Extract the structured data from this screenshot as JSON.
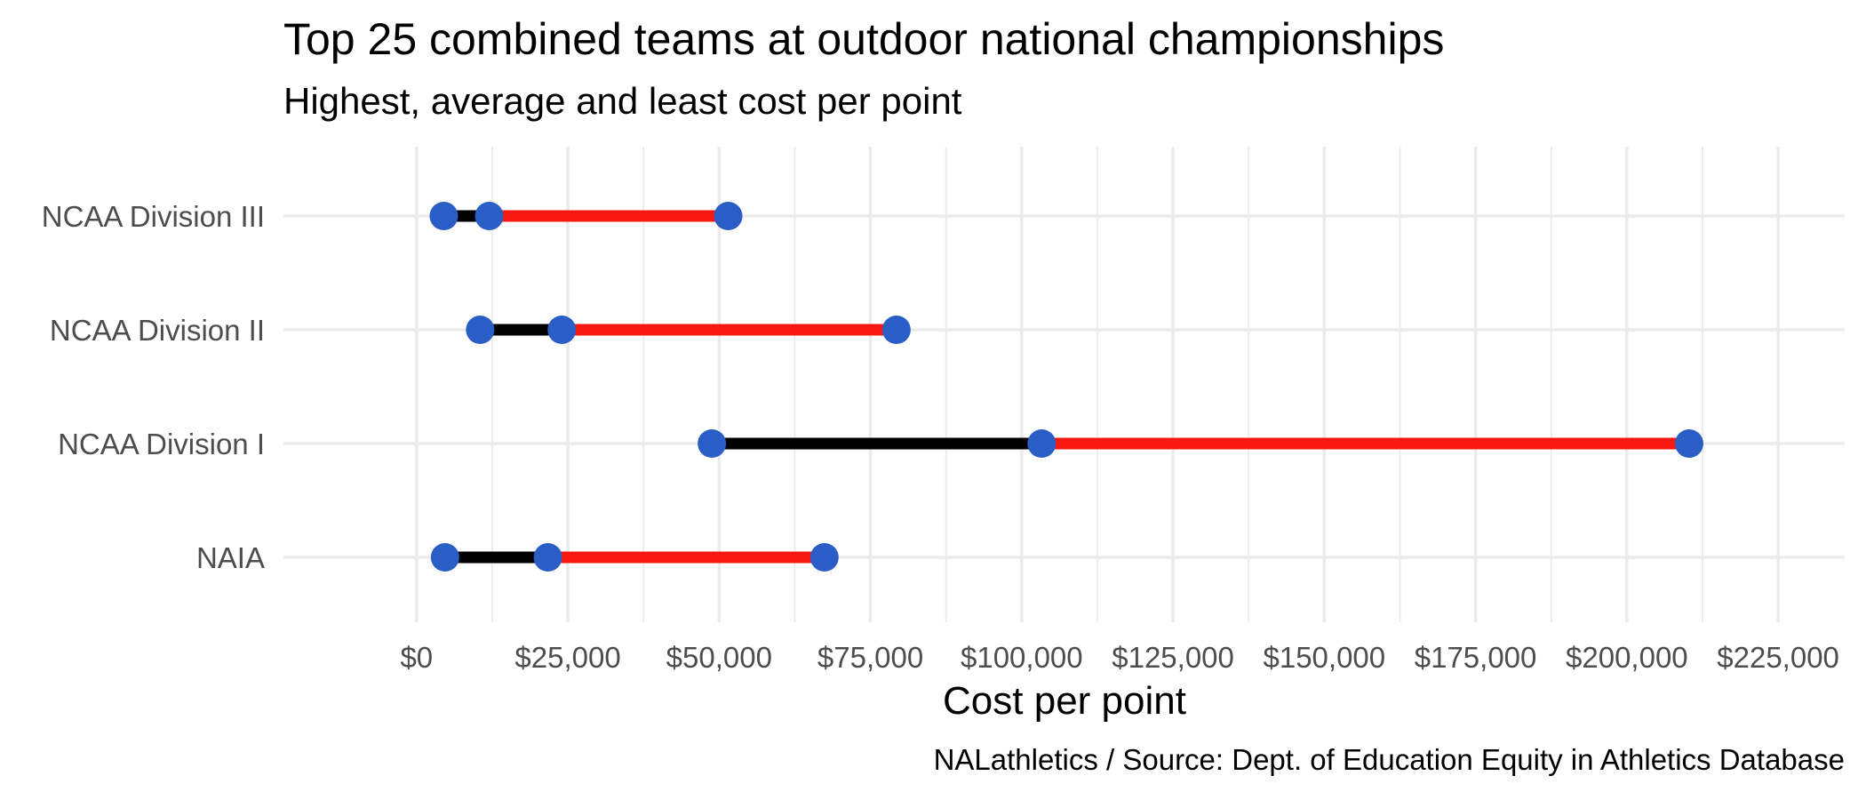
{
  "chart_data": {
    "type": "dumbbell",
    "title": "Top 25 combined teams at outdoor national championships",
    "subtitle": "Highest, average and least cost per point",
    "xlabel": "Cost per point",
    "ylabel": "",
    "caption": "NALathletics / Source: Dept. of Education Equity in Athletics Database",
    "xlim": [
      -22000,
      236000
    ],
    "x_ticks": [
      0,
      25000,
      50000,
      75000,
      100000,
      125000,
      150000,
      175000,
      200000,
      225000
    ],
    "x_tick_labels": [
      "$0",
      "$25,000",
      "$50,000",
      "$75,000",
      "$100,000",
      "$125,000",
      "$150,000",
      "$175,000",
      "$200,000",
      "$225,000"
    ],
    "grid": true,
    "categories": [
      "NCAA Division III",
      "NCAA Division II",
      "NCAA Division I",
      "NAIA"
    ],
    "series": [
      {
        "values": [
          4500,
          10500,
          48800,
          4700
        ]
      },
      {
        "values": [
          12000,
          24000,
          103300,
          21700
        ]
      },
      {
        "values": [
          51500,
          79300,
          210300,
          67400
        ]
      }
    ],
    "colors": {
      "least_to_average": "#000000",
      "average_to_highest": "#f8180f",
      "point": "#2a5ec6",
      "grid": "#ebebeb"
    }
  }
}
